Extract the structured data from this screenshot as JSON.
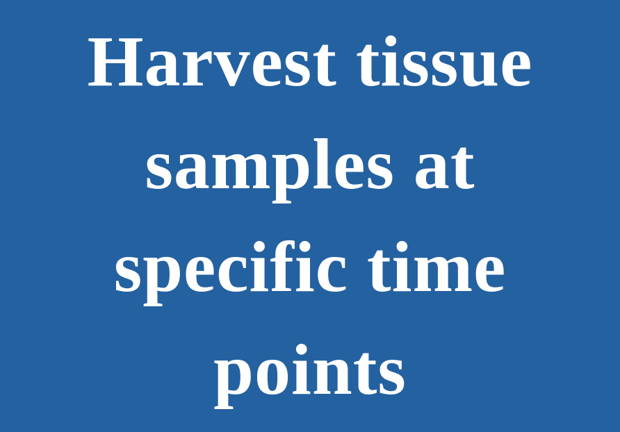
{
  "step": {
    "lines": [
      "Harvest tissue",
      "samples at",
      "specific time",
      "points"
    ]
  },
  "colors": {
    "background": "#2461a0",
    "text": "#ffffff"
  }
}
